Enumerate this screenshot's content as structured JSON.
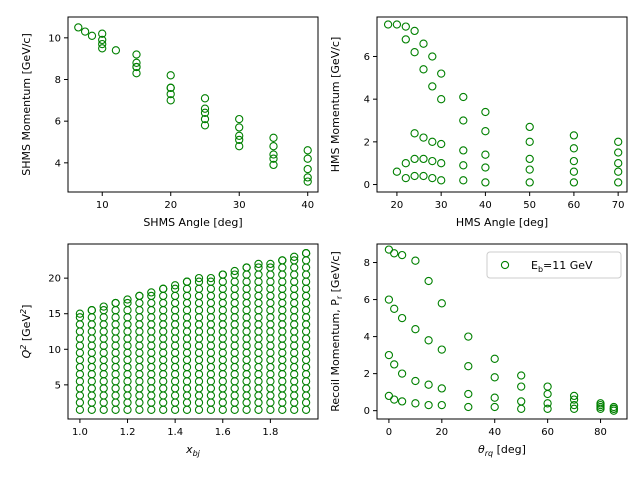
{
  "figure": {
    "marker_color": "#008000"
  },
  "chart_data": [
    {
      "type": "scatter",
      "xlabel": "SHMS Angle [deg]",
      "ylabel": "SHMS Momentum [GeV/c]",
      "xlim": [
        5,
        41.5
      ],
      "ylim": [
        2.6,
        11.0
      ],
      "xticks": [
        10,
        20,
        30,
        40
      ],
      "yticks": [
        4,
        6,
        8,
        10
      ],
      "grid": false,
      "series": [
        {
          "x": [
            6.5,
            10,
            15,
            20,
            25,
            30,
            35,
            40
          ],
          "y": [
            10.5,
            9.9,
            8.8,
            7.6,
            6.4,
            5.3,
            4.4,
            3.7
          ]
        },
        {
          "x": [
            7.5,
            10,
            15,
            20,
            25,
            30,
            35,
            40
          ],
          "y": [
            10.3,
            9.7,
            8.6,
            7.3,
            6.1,
            5.1,
            4.2,
            3.3
          ]
        },
        {
          "x": [
            8.5,
            10,
            15,
            20,
            25,
            30,
            35,
            40
          ],
          "y": [
            10.1,
            9.5,
            8.3,
            7.0,
            5.8,
            4.8,
            3.9,
            3.1
          ]
        },
        {
          "x": [
            10,
            15,
            20,
            25,
            30,
            35,
            40
          ],
          "y": [
            10.2,
            9.2,
            8.2,
            7.1,
            6.1,
            5.2,
            4.6
          ]
        },
        {
          "x": [
            12,
            15,
            20,
            25,
            30,
            35,
            40
          ],
          "y": [
            9.4,
            8.6,
            7.6,
            6.6,
            5.7,
            4.8,
            4.2
          ]
        }
      ]
    },
    {
      "type": "scatter",
      "xlabel": "HMS Angle [deg]",
      "ylabel": "HMS Momentum [GeV/c]",
      "xlim": [
        15.5,
        72
      ],
      "ylim": [
        -0.35,
        7.85
      ],
      "xticks": [
        20,
        30,
        40,
        50,
        60,
        70
      ],
      "yticks": [
        0,
        2,
        4,
        6
      ],
      "grid": false,
      "series": [
        {
          "x": [
            18,
            20,
            22,
            24,
            26,
            28,
            30,
            35,
            40,
            50,
            60,
            70
          ],
          "y": [
            7.5,
            7.5,
            7.4,
            7.2,
            6.6,
            6.0,
            5.2,
            4.1,
            3.4,
            2.7,
            2.3,
            2.0
          ]
        },
        {
          "x": [
            22,
            24,
            26,
            28,
            30,
            35,
            40,
            50,
            60,
            70
          ],
          "y": [
            6.8,
            6.2,
            5.4,
            4.6,
            4.0,
            3.0,
            2.5,
            2.0,
            1.7,
            1.5
          ]
        },
        {
          "x": [
            24,
            26,
            28,
            30,
            35,
            40,
            50,
            60,
            70
          ],
          "y": [
            2.4,
            2.2,
            2.0,
            1.9,
            1.6,
            1.4,
            1.2,
            1.1,
            1.0
          ]
        },
        {
          "x": [
            20,
            22,
            24,
            26,
            28,
            30,
            35,
            40,
            50,
            60,
            70
          ],
          "y": [
            0.6,
            1.0,
            1.2,
            1.2,
            1.1,
            1.0,
            0.9,
            0.8,
            0.7,
            0.6,
            0.6
          ]
        },
        {
          "x": [
            22,
            24,
            26,
            28,
            30,
            35,
            40,
            50,
            60,
            70
          ],
          "y": [
            0.3,
            0.4,
            0.4,
            0.3,
            0.2,
            0.2,
            0.1,
            0.1,
            0.1,
            0.1
          ]
        }
      ]
    },
    {
      "type": "scatter",
      "xlabel": "x_bj",
      "ylabel": "Q^2 [GeV^2]",
      "xlim": [
        0.95,
        2.0
      ],
      "ylim": [
        0.2,
        24.8
      ],
      "xticks": [
        1.0,
        1.2,
        1.4,
        1.6,
        1.8
      ],
      "xtick_labels": [
        "1.0",
        "1.2",
        "1.4",
        "1.6",
        "1.8"
      ],
      "yticks": [
        5,
        10,
        15,
        20
      ],
      "grid": false,
      "columns": {
        "x": [
          1.0,
          1.05,
          1.1,
          1.15,
          1.2,
          1.25,
          1.3,
          1.35,
          1.4,
          1.45,
          1.5,
          1.55,
          1.6,
          1.65,
          1.7,
          1.75,
          1.8,
          1.85,
          1.9,
          1.95
        ],
        "y_min": 1.5,
        "y_max": [
          15.0,
          15.5,
          16.0,
          16.5,
          17.0,
          17.5,
          18.0,
          18.5,
          19.0,
          19.5,
          20.0,
          20.0,
          20.5,
          21.0,
          21.5,
          22.0,
          22.0,
          22.5,
          23.0,
          23.5
        ],
        "y_step": 1.0
      }
    },
    {
      "type": "scatter",
      "xlabel": "θ_rq [deg]",
      "ylabel": "Recoil Momentum, P_r [GeV/c]",
      "xlim": [
        -4.5,
        90
      ],
      "ylim": [
        -0.45,
        9.0
      ],
      "xticks": [
        0,
        20,
        40,
        60,
        80
      ],
      "yticks": [
        0,
        2,
        4,
        6,
        8
      ],
      "grid": false,
      "legend": {
        "label": "E_b=11 GeV",
        "position": "top-right"
      },
      "series": [
        {
          "x": [
            0,
            2,
            5,
            10,
            15,
            20,
            30,
            40,
            50,
            60,
            70,
            80,
            85
          ],
          "y": [
            8.7,
            8.5,
            8.4,
            8.1,
            7.0,
            5.8,
            4.0,
            2.8,
            1.9,
            1.3,
            0.8,
            0.4,
            0.2
          ]
        },
        {
          "x": [
            0,
            2,
            5,
            10,
            15,
            20,
            30,
            40,
            50,
            60,
            70,
            80,
            85
          ],
          "y": [
            6.0,
            5.5,
            5.0,
            4.4,
            3.8,
            3.3,
            2.4,
            1.8,
            1.3,
            0.9,
            0.6,
            0.3,
            0.1
          ]
        },
        {
          "x": [
            0,
            2,
            5,
            10,
            15,
            20,
            30,
            40,
            50,
            60,
            70,
            80,
            85
          ],
          "y": [
            3.0,
            2.5,
            2.0,
            1.6,
            1.4,
            1.2,
            0.9,
            0.7,
            0.5,
            0.4,
            0.3,
            0.2,
            0.1
          ]
        },
        {
          "x": [
            0,
            2,
            5,
            10,
            15,
            20,
            30,
            40,
            50,
            60,
            70,
            80,
            85
          ],
          "y": [
            0.8,
            0.6,
            0.5,
            0.4,
            0.3,
            0.3,
            0.2,
            0.2,
            0.1,
            0.1,
            0.1,
            0.1,
            0.0
          ]
        }
      ]
    }
  ]
}
